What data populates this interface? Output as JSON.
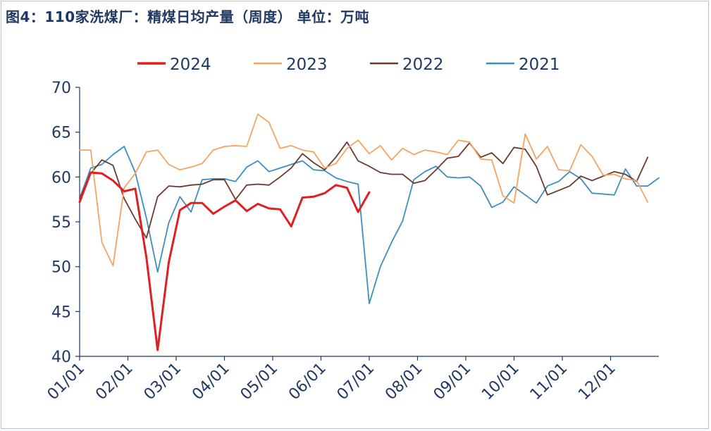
{
  "title": "图4：110家洗煤厂：精煤日均产量（周度）   单位：万吨",
  "chart_data": {
    "type": "line",
    "ylim": [
      40,
      70
    ],
    "yticks": [
      40,
      45,
      50,
      55,
      60,
      65,
      70
    ],
    "xticks": [
      "01/01",
      "02/01",
      "03/01",
      "04/01",
      "05/01",
      "06/01",
      "07/01",
      "08/01",
      "09/01",
      "10/01",
      "11/01",
      "12/01"
    ],
    "x_range_weeks": 52,
    "grid": false,
    "legend_position": "top",
    "series": [
      {
        "name": "2024",
        "color": "#e02020",
        "width": 3,
        "values": [
          57.2,
          60.5,
          60.4,
          59.6,
          58.4,
          58.7,
          51.0,
          40.7,
          50.5,
          56.3,
          57.1,
          57.1,
          55.9,
          56.7,
          57.4,
          56.2,
          57.0,
          56.5,
          56.4,
          54.5,
          57.7,
          57.8,
          58.2,
          59.1,
          58.8,
          56.1,
          58.3
        ]
      },
      {
        "name": "2023",
        "color": "#f4a460",
        "width": 1.8,
        "values": [
          63.0,
          63.0,
          52.7,
          50.1,
          58.8,
          60.4,
          62.8,
          63.0,
          61.4,
          60.8,
          61.1,
          61.5,
          63.0,
          63.4,
          63.5,
          63.4,
          67.0,
          66.1,
          63.2,
          63.5,
          63.0,
          62.8,
          61.0,
          61.5,
          63.2,
          64.1,
          62.6,
          63.5,
          61.9,
          63.2,
          62.5,
          63.0,
          62.8,
          62.5,
          64.1,
          63.9,
          62.0,
          61.9,
          57.9,
          57.1,
          64.8,
          62.0,
          63.4,
          60.8,
          60.7,
          63.6,
          62.3,
          60.2,
          60.3,
          59.8,
          59.6,
          57.2
        ]
      },
      {
        "name": "2022",
        "color": "#6b3a2e",
        "width": 1.8,
        "values": [
          57.6,
          60.4,
          61.9,
          61.3,
          57.6,
          55.3,
          53.2,
          57.8,
          59.0,
          58.9,
          59.1,
          59.2,
          59.7,
          59.7,
          57.5,
          59.1,
          59.2,
          59.1,
          60.0,
          61.0,
          62.6,
          61.6,
          60.8,
          62.2,
          63.9,
          61.8,
          61.2,
          60.5,
          60.3,
          60.3,
          59.3,
          59.6,
          60.8,
          62.1,
          62.3,
          63.8,
          62.2,
          62.7,
          61.5,
          63.3,
          63.1,
          61.2,
          58.0,
          58.5,
          59.0,
          60.1,
          59.6,
          60.1,
          60.6,
          60.3,
          59.5,
          62.2
        ]
      },
      {
        "name": "2021",
        "color": "#3a8fc0",
        "width": 1.8,
        "values": [
          57.6,
          61.0,
          61.4,
          62.5,
          63.4,
          60.5,
          55.4,
          49.4,
          54.9,
          57.8,
          56.1,
          59.7,
          59.8,
          59.8,
          59.5,
          61.1,
          61.8,
          60.6,
          61.0,
          61.4,
          61.8,
          60.8,
          60.7,
          59.9,
          59.5,
          59.2,
          45.9,
          50.0,
          52.7,
          55.1,
          59.7,
          60.6,
          61.2,
          60.0,
          59.9,
          60.0,
          59.0,
          56.6,
          57.2,
          58.9,
          58.0,
          57.1,
          59.0,
          59.5,
          60.6,
          59.8,
          58.2,
          58.1,
          58.0,
          60.9,
          59.0,
          59.0,
          59.9
        ]
      }
    ]
  }
}
